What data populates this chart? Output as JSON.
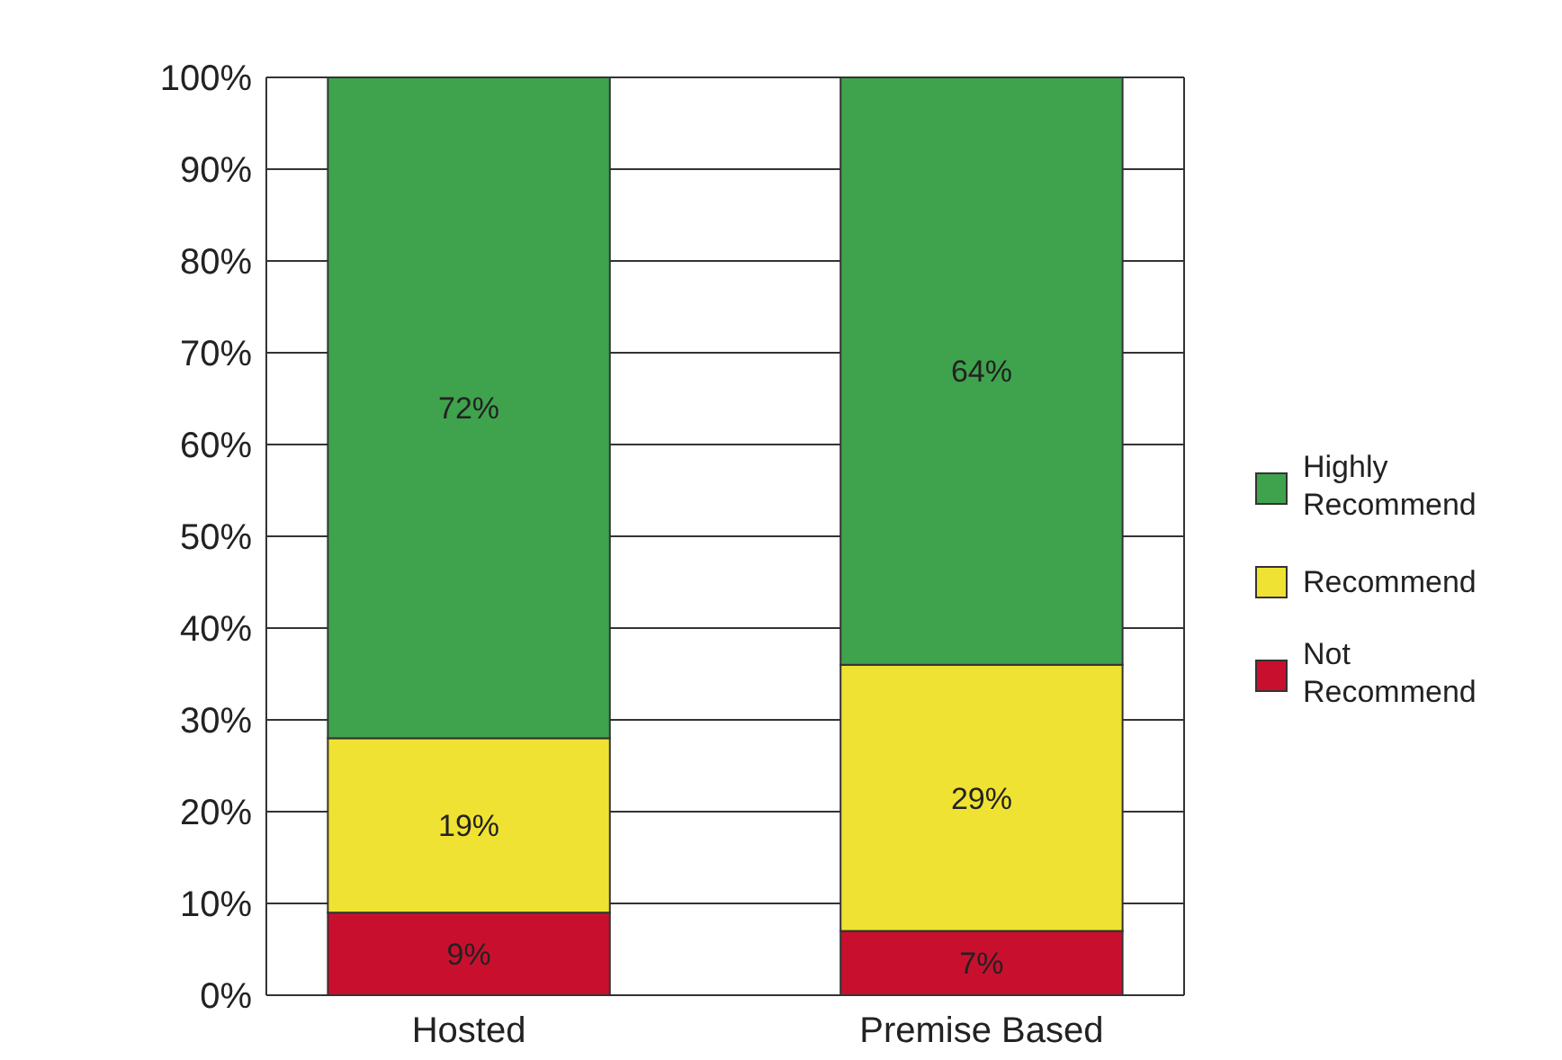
{
  "chart_data": {
    "type": "bar",
    "stacked": true,
    "categories": [
      "Hosted",
      "Premise Based"
    ],
    "series": [
      {
        "name": "Not Recommend",
        "color": "#c8102e",
        "values": [
          9,
          7
        ],
        "value_labels": [
          "9%",
          "7%"
        ]
      },
      {
        "name": "Recommend",
        "color": "#f0e232",
        "values": [
          19,
          29
        ],
        "value_labels": [
          "19%",
          "29%"
        ]
      },
      {
        "name": "Highly Recommend",
        "color": "#3fa34d",
        "values": [
          72,
          64
        ],
        "value_labels": [
          "72%",
          "64%"
        ]
      }
    ],
    "ylim": [
      0,
      100
    ],
    "yticks": [
      {
        "value": 0,
        "label": "0%"
      },
      {
        "value": 10,
        "label": "10%"
      },
      {
        "value": 20,
        "label": "20%"
      },
      {
        "value": 30,
        "label": "30%"
      },
      {
        "value": 40,
        "label": "40%"
      },
      {
        "value": 50,
        "label": "50%"
      },
      {
        "value": 60,
        "label": "60%"
      },
      {
        "value": 70,
        "label": "70%"
      },
      {
        "value": 80,
        "label": "80%"
      },
      {
        "value": 90,
        "label": "90%"
      },
      {
        "value": 100,
        "label": "100%"
      }
    ],
    "grid": "y",
    "legend": "right"
  }
}
